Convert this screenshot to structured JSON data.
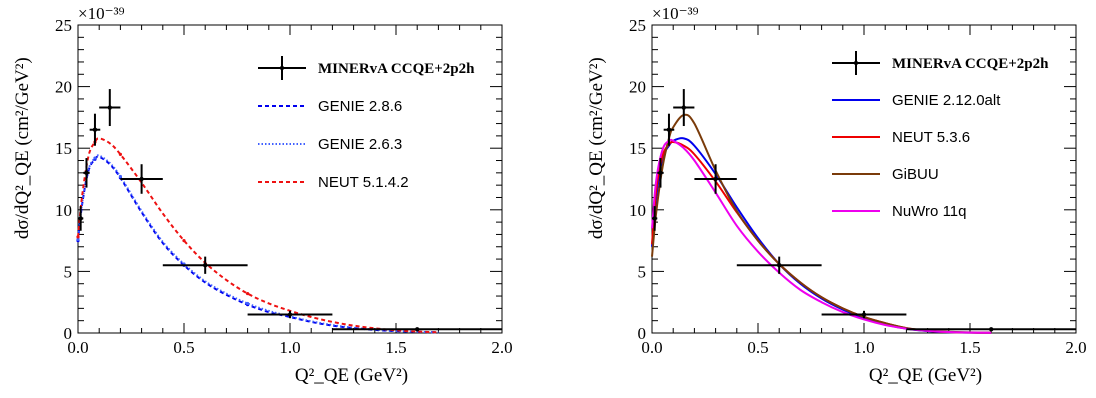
{
  "chart_data": [
    {
      "type": "line",
      "xlabel": "Q²_QE (GeV²)",
      "ylabel": "dσ/dQ²_QE (cm²/GeV²)",
      "y_exponent_label": "×10⁻³⁹",
      "xlim": [
        0,
        2.0
      ],
      "ylim": [
        0,
        25
      ],
      "x_ticks": [
        "0.0",
        "0.5",
        "1.0",
        "1.5",
        "2.0"
      ],
      "y_ticks": [
        "0",
        "5",
        "10",
        "15",
        "20",
        "25"
      ],
      "legend_position": "top-right",
      "data_series": {
        "name": "MINERvA CCQE+2p2h",
        "points": [
          {
            "x": 0.0125,
            "y": 9.3,
            "xerr": 0.0125,
            "yerr": 1.0
          },
          {
            "x": 0.04,
            "y": 13.0,
            "xerr": 0.015,
            "yerr": 1.2
          },
          {
            "x": 0.08,
            "y": 16.5,
            "xerr": 0.025,
            "yerr": 1.3
          },
          {
            "x": 0.15,
            "y": 18.3,
            "xerr": 0.05,
            "yerr": 1.5
          },
          {
            "x": 0.3,
            "y": 12.5,
            "xerr": 0.1,
            "yerr": 1.2
          },
          {
            "x": 0.6,
            "y": 5.5,
            "xerr": 0.2,
            "yerr": 0.7
          },
          {
            "x": 1.0,
            "y": 1.5,
            "xerr": 0.2,
            "yerr": 0.3
          },
          {
            "x": 1.6,
            "y": 0.3,
            "xerr": 0.4,
            "yerr": 0.1
          }
        ]
      },
      "series": [
        {
          "name": "GENIE 2.8.6",
          "color": "#0000ee",
          "style": "dashed",
          "x": [
            0.0,
            0.02,
            0.05,
            0.08,
            0.1,
            0.15,
            0.2,
            0.3,
            0.4,
            0.5,
            0.6,
            0.7,
            0.8,
            0.9,
            1.0,
            1.1,
            1.2,
            1.3,
            1.4,
            1.5,
            1.6,
            1.7
          ],
          "values": [
            7.5,
            10.5,
            13.2,
            14.1,
            14.3,
            13.7,
            12.6,
            9.8,
            7.3,
            5.5,
            4.1,
            3.1,
            2.3,
            1.7,
            1.3,
            0.9,
            0.6,
            0.4,
            0.25,
            0.15,
            0.1,
            0.05
          ]
        },
        {
          "name": "GENIE 2.6.3",
          "color": "#4060ff",
          "style": "dotted",
          "x": [
            0.0,
            0.02,
            0.05,
            0.08,
            0.1,
            0.15,
            0.2,
            0.3,
            0.4,
            0.5,
            0.6,
            0.7,
            0.8,
            0.9,
            1.0,
            1.1,
            1.2,
            1.3,
            1.4,
            1.5,
            1.6,
            1.7
          ],
          "values": [
            7.6,
            10.6,
            13.3,
            14.2,
            14.4,
            13.8,
            12.7,
            9.9,
            7.4,
            5.6,
            4.2,
            3.2,
            2.4,
            1.8,
            1.35,
            0.95,
            0.65,
            0.42,
            0.27,
            0.16,
            0.1,
            0.05
          ]
        },
        {
          "name": "NEUT 5.1.4.2",
          "color": "#ee1111",
          "style": "dashed",
          "x": [
            0.0,
            0.02,
            0.05,
            0.08,
            0.1,
            0.15,
            0.2,
            0.3,
            0.4,
            0.5,
            0.6,
            0.7,
            0.8,
            0.9,
            1.0,
            1.1,
            1.2,
            1.3,
            1.4,
            1.5,
            1.6,
            1.7
          ],
          "values": [
            7.8,
            11.2,
            14.4,
            15.5,
            15.8,
            15.4,
            14.5,
            12.2,
            9.7,
            7.5,
            5.7,
            4.3,
            3.2,
            2.4,
            1.8,
            1.3,
            0.9,
            0.6,
            0.38,
            0.22,
            0.12,
            0.06
          ]
        }
      ]
    },
    {
      "type": "line",
      "xlabel": "Q²_QE (GeV²)",
      "ylabel": "dσ/dQ²_QE (cm²/GeV²)",
      "y_exponent_label": "×10⁻³⁹",
      "xlim": [
        0,
        2.0
      ],
      "ylim": [
        0,
        25
      ],
      "x_ticks": [
        "0.0",
        "0.5",
        "1.0",
        "1.5",
        "2.0"
      ],
      "y_ticks": [
        "0",
        "5",
        "10",
        "15",
        "20",
        "25"
      ],
      "legend_position": "top-right",
      "data_series": {
        "name": "MINERvA CCQE+2p2h",
        "points": [
          {
            "x": 0.0125,
            "y": 9.3,
            "xerr": 0.0125,
            "yerr": 1.0
          },
          {
            "x": 0.04,
            "y": 13.0,
            "xerr": 0.015,
            "yerr": 1.2
          },
          {
            "x": 0.08,
            "y": 16.5,
            "xerr": 0.025,
            "yerr": 1.3
          },
          {
            "x": 0.15,
            "y": 18.3,
            "xerr": 0.05,
            "yerr": 1.5
          },
          {
            "x": 0.3,
            "y": 12.5,
            "xerr": 0.1,
            "yerr": 1.2
          },
          {
            "x": 0.6,
            "y": 5.5,
            "xerr": 0.2,
            "yerr": 0.7
          },
          {
            "x": 1.0,
            "y": 1.5,
            "xerr": 0.2,
            "yerr": 0.3
          },
          {
            "x": 1.6,
            "y": 0.3,
            "xerr": 0.4,
            "yerr": 0.1
          }
        ]
      },
      "series": [
        {
          "name": "GENIE 2.12.0alt",
          "color": "#0000ee",
          "style": "solid",
          "x": [
            0.0,
            0.02,
            0.05,
            0.08,
            0.1,
            0.15,
            0.2,
            0.3,
            0.4,
            0.5,
            0.6,
            0.7,
            0.8,
            0.9,
            1.0,
            1.1,
            1.2,
            1.3,
            1.4,
            1.5,
            1.6
          ],
          "values": [
            7.0,
            11.0,
            14.2,
            15.2,
            15.6,
            15.8,
            15.2,
            12.9,
            10.2,
            7.7,
            5.6,
            4.0,
            2.8,
            1.9,
            1.2,
            0.7,
            0.35,
            0.15,
            0.06,
            0.03,
            0.02
          ]
        },
        {
          "name": "NEUT 5.3.6",
          "color": "#ee0000",
          "style": "solid",
          "x": [
            0.0,
            0.02,
            0.05,
            0.08,
            0.1,
            0.15,
            0.2,
            0.3,
            0.4,
            0.5,
            0.6,
            0.7,
            0.8,
            0.9,
            1.0,
            1.1,
            1.2,
            1.3,
            1.4,
            1.5,
            1.6
          ],
          "values": [
            7.2,
            11.6,
            14.4,
            15.3,
            15.5,
            15.2,
            14.5,
            12.3,
            9.8,
            7.5,
            5.6,
            4.1,
            2.9,
            2.0,
            1.3,
            0.8,
            0.4,
            0.18,
            0.07,
            0.03,
            0.02
          ]
        },
        {
          "name": "GiBUU",
          "color": "#7a3b0a",
          "style": "solid",
          "x": [
            0.0,
            0.02,
            0.05,
            0.08,
            0.1,
            0.15,
            0.2,
            0.3,
            0.4,
            0.5,
            0.6,
            0.7,
            0.8,
            0.9,
            1.0,
            1.1,
            1.2,
            1.3,
            1.4,
            1.5,
            1.6
          ],
          "values": [
            6.2,
            9.8,
            13.5,
            15.8,
            16.7,
            17.7,
            17.0,
            13.2,
            9.9,
            7.5,
            5.6,
            4.1,
            2.9,
            2.0,
            1.3,
            0.8,
            0.4,
            0.2,
            0.1,
            0.05,
            0.03
          ]
        },
        {
          "name": "NuWro 11q",
          "color": "#ee00ee",
          "style": "solid",
          "x": [
            0.0,
            0.02,
            0.05,
            0.08,
            0.1,
            0.15,
            0.2,
            0.3,
            0.4,
            0.5,
            0.6,
            0.7,
            0.8,
            0.9,
            1.0,
            1.1,
            1.2,
            1.3,
            1.4,
            1.5,
            1.6
          ],
          "values": [
            8.5,
            12.4,
            14.9,
            15.6,
            15.6,
            15.0,
            14.0,
            11.4,
            8.7,
            6.6,
            4.9,
            3.5,
            2.5,
            1.7,
            1.1,
            0.65,
            0.35,
            0.17,
            0.08,
            0.04,
            0.02
          ]
        }
      ]
    }
  ]
}
